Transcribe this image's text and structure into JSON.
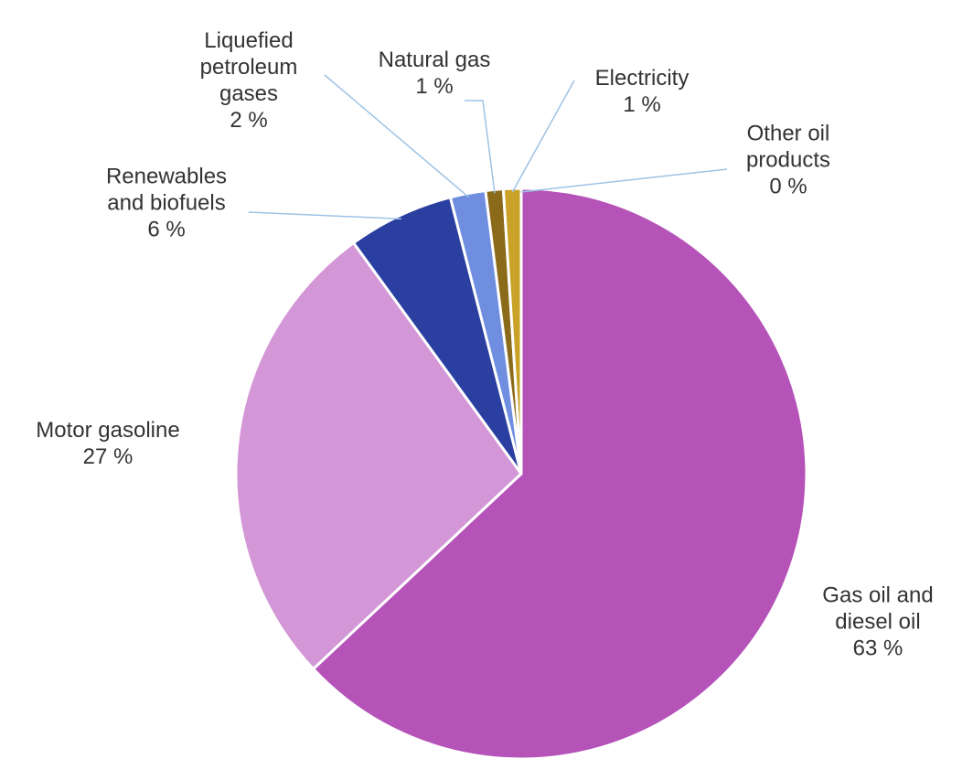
{
  "chart_data": {
    "type": "pie",
    "categories": [
      "Gas oil and diesel oil",
      "Motor gasoline",
      "Renewables and biofuels",
      "Liquefied petroleum gases",
      "Natural gas",
      "Electricity",
      "Other oil products"
    ],
    "values": [
      63,
      27,
      6,
      2,
      1,
      1,
      0
    ],
    "value_labels": [
      "63 %",
      "27 %",
      "6 %",
      "2 %",
      "1 %",
      "1 %",
      "0 %"
    ],
    "colors": [
      "#b553b8",
      "#d396d6",
      "#2a3fa0",
      "#6f8ee0",
      "#8b6a1a",
      "#c9a227",
      "#e8c95a"
    ]
  }
}
